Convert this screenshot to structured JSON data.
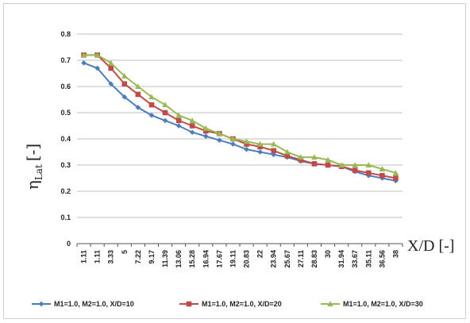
{
  "chart_data": {
    "type": "line",
    "ylabel_main": "η",
    "ylabel_sub": "Lat",
    "ylabel_suffix": "[-]",
    "xlabel": "X/D [-]",
    "ylim": [
      0,
      0.8
    ],
    "yticks": [
      "0",
      "0.1",
      "0.2",
      "0.3",
      "0.4",
      "0.5",
      "0.6",
      "0.7",
      "0.8"
    ],
    "grid": true,
    "legend_position": "bottom",
    "categories": [
      "1.11",
      "1.11",
      "3.33",
      "5",
      "7.22",
      "9.17",
      "11.39",
      "13.06",
      "15.28",
      "16.94",
      "17.67",
      "19.11",
      "20.83",
      "22",
      "23.94",
      "25.67",
      "27.11",
      "28.83",
      "30",
      "31.94",
      "33.67",
      "35.11",
      "36.56",
      "38"
    ],
    "series": [
      {
        "name": "M1=1.0, M2=1.0, X/D=10",
        "color": "#4a7ebb",
        "marker": "diamond",
        "values": [
          0.69,
          0.67,
          0.61,
          0.56,
          0.52,
          0.49,
          0.47,
          0.45,
          0.425,
          0.41,
          0.395,
          0.38,
          0.36,
          0.35,
          0.34,
          0.33,
          0.315,
          0.305,
          0.3,
          0.295,
          0.275,
          0.26,
          0.25,
          0.24
        ]
      },
      {
        "name": "M1=1.0, M2=1.0, X/D=20",
        "color": "#be4b48",
        "marker": "square",
        "values": [
          0.72,
          0.72,
          0.67,
          0.61,
          0.57,
          0.53,
          0.5,
          0.47,
          0.45,
          0.43,
          0.42,
          0.4,
          0.38,
          0.37,
          0.355,
          0.335,
          0.32,
          0.305,
          0.3,
          0.295,
          0.28,
          0.27,
          0.26,
          0.25
        ]
      },
      {
        "name": "M1=1.0, M2=1.0, X/D=30",
        "color": "#98b954",
        "marker": "triangle",
        "values": [
          0.72,
          0.72,
          0.69,
          0.64,
          0.6,
          0.56,
          0.53,
          0.49,
          0.47,
          0.44,
          0.42,
          0.4,
          0.39,
          0.38,
          0.38,
          0.35,
          0.33,
          0.33,
          0.32,
          0.3,
          0.3,
          0.3,
          0.285,
          0.27
        ]
      }
    ]
  }
}
